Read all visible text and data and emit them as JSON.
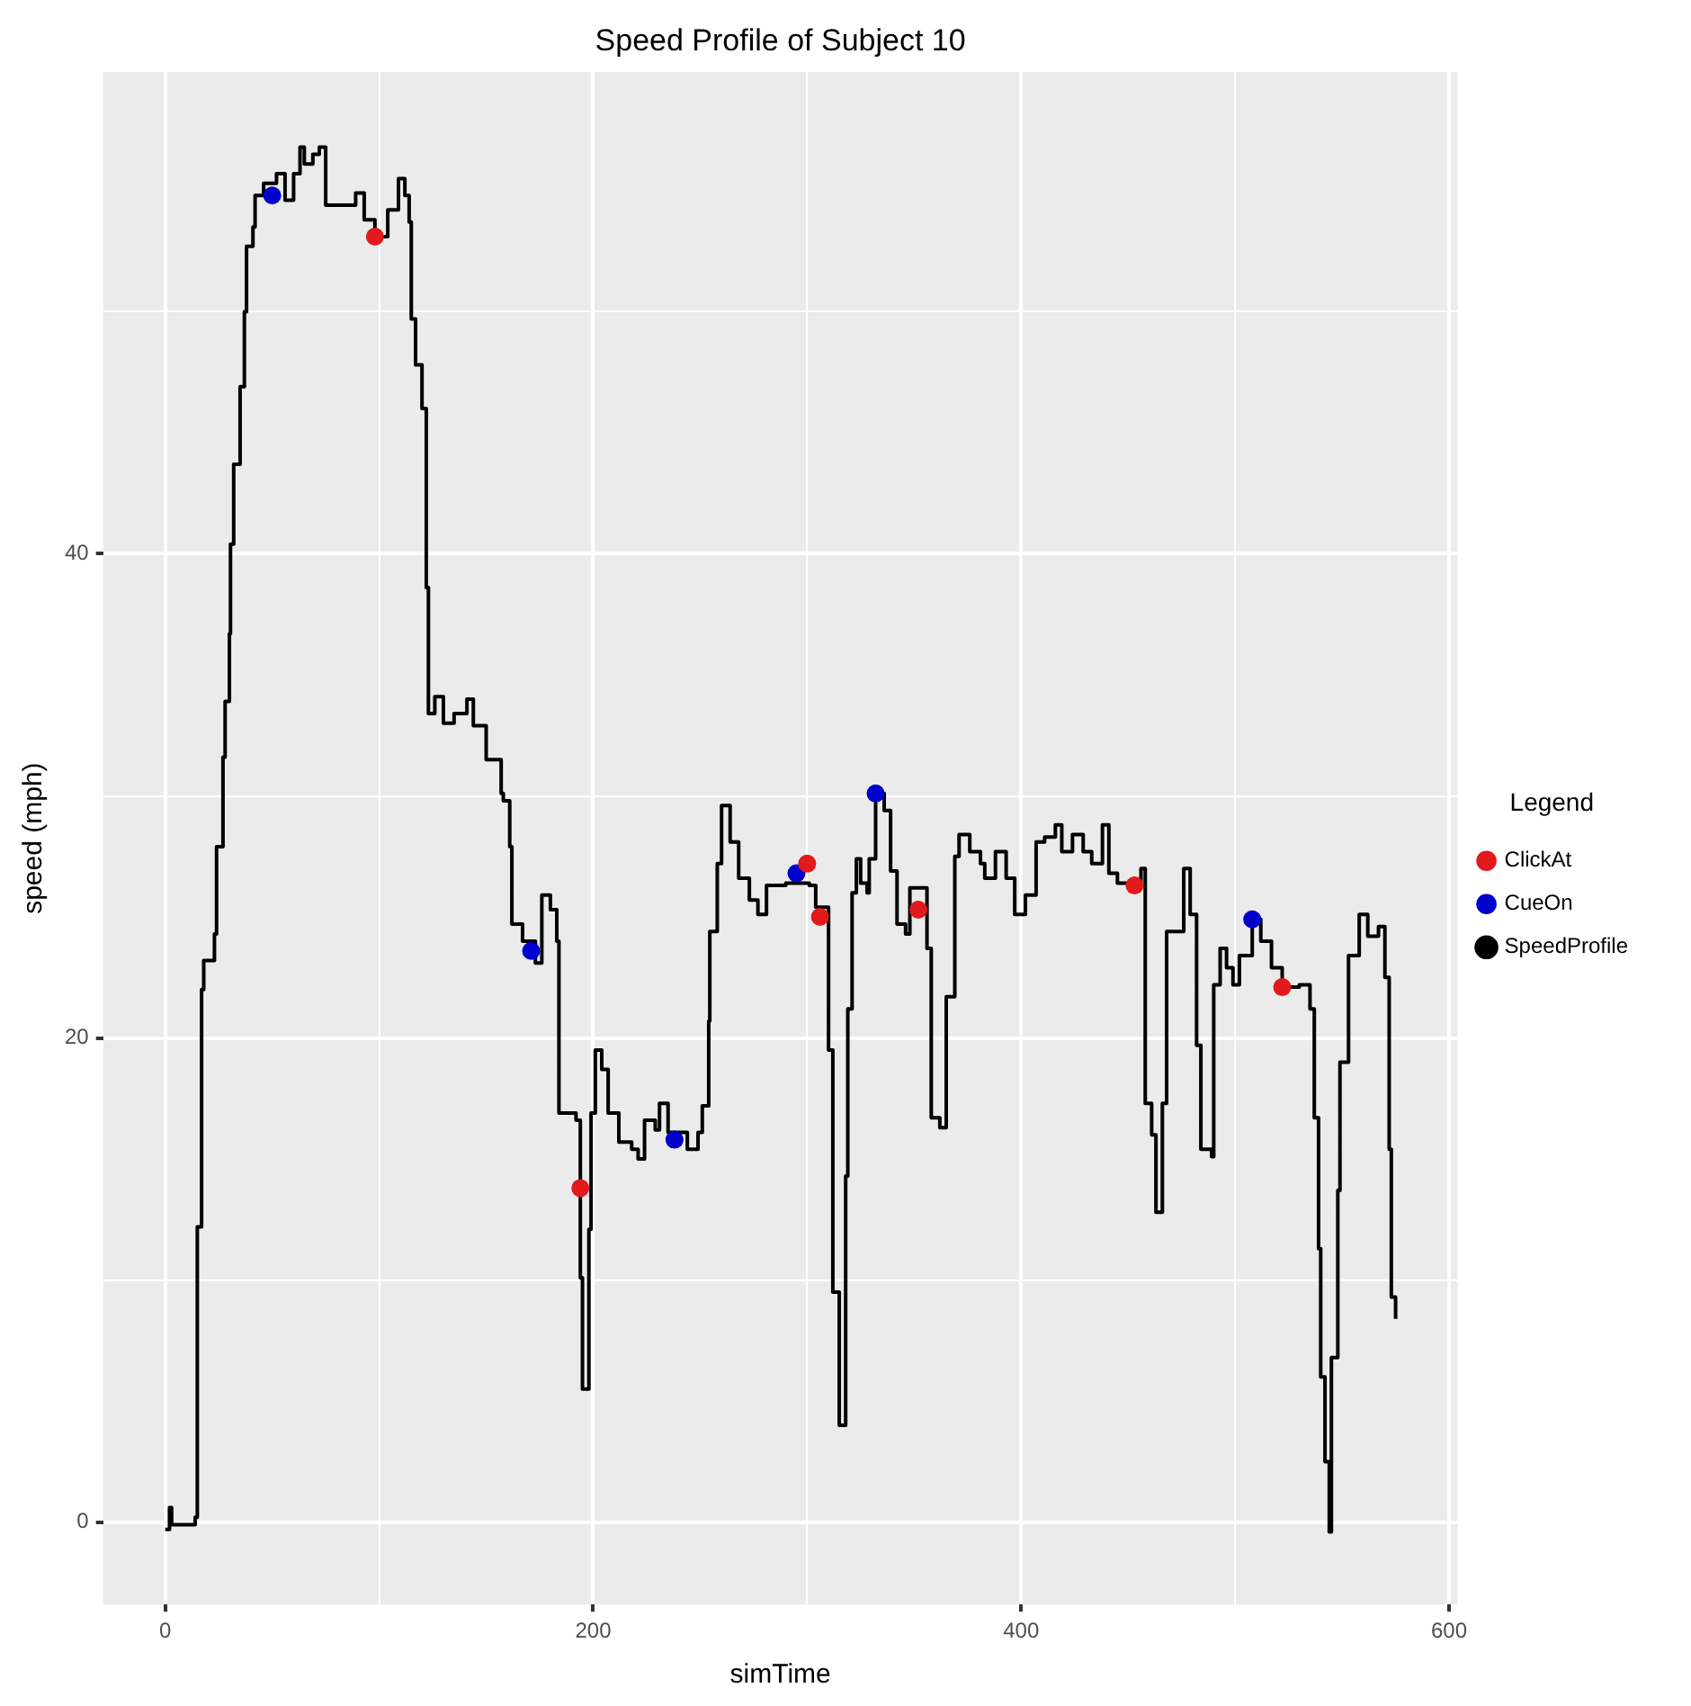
{
  "chart_data": {
    "type": "step",
    "title": "Speed Profile of Subject 10",
    "xlabel": "simTime",
    "ylabel": "speed (mph)",
    "legend_title": "Legend",
    "legend": "right",
    "grid": true,
    "xlim": [
      -29,
      604
    ],
    "xticks": [
      0,
      {
        "value": 100,
        "label": null
      },
      200,
      {
        "value": 300,
        "label": null
      },
      400,
      {
        "value": 500,
        "label": null
      },
      600
    ],
    "ylim": [
      -3.4,
      59.9
    ],
    "yticks": [
      0,
      {
        "value": 10,
        "label": null
      },
      20,
      {
        "value": 30,
        "label": null
      },
      40,
      {
        "value": 50,
        "label": null
      }
    ],
    "series": [
      {
        "name": "ClickAt",
        "type": "scatter",
        "marker": "circle",
        "color": "#e31a1c",
        "x": [
          98,
          194,
          300,
          306,
          352,
          453,
          522
        ],
        "values": [
          53.1,
          13.8,
          27.2,
          25.0,
          25.3,
          26.3,
          22.1
        ]
      },
      {
        "name": "CueOn",
        "type": "scatter",
        "marker": "circle",
        "color": "#0000cc",
        "x": [
          50,
          171,
          238,
          295,
          332,
          508
        ],
        "values": [
          54.8,
          23.6,
          15.8,
          26.8,
          30.1,
          24.9
        ]
      },
      {
        "name": "SpeedProfile",
        "type": "step",
        "color": "#000000",
        "x": [
          0,
          2,
          3,
          14,
          15,
          17,
          18,
          23,
          24,
          27,
          28,
          30,
          30.5,
          32,
          35,
          37,
          38,
          41,
          42,
          46,
          52,
          56,
          60,
          63,
          65,
          69,
          72,
          75,
          89,
          93,
          98,
          104,
          109,
          112,
          114,
          115,
          117,
          120,
          122,
          123,
          126,
          130,
          135,
          141,
          144,
          150,
          157,
          158,
          161,
          162,
          167,
          173,
          176,
          180,
          183,
          184,
          192,
          194,
          195,
          198,
          199,
          201,
          204,
          207,
          212,
          218,
          221,
          224,
          229,
          231,
          235,
          244,
          249,
          251,
          254,
          254.5,
          258,
          260,
          264,
          268,
          273,
          277,
          281,
          290,
          301,
          304,
          310,
          312,
          315,
          318,
          319,
          321,
          323,
          325,
          328,
          329,
          332,
          336,
          339,
          342,
          346,
          348,
          356,
          358,
          362,
          365,
          369,
          371,
          376,
          381,
          383,
          388,
          393,
          397,
          402,
          407,
          411,
          416,
          419,
          424,
          429,
          433,
          438,
          441,
          445,
          456,
          458,
          461,
          463,
          466,
          468,
          476,
          479,
          482,
          484,
          489,
          490,
          493,
          496,
          499,
          502,
          508,
          512,
          517,
          522,
          530,
          535,
          537,
          539,
          540,
          542,
          544,
          545,
          548,
          549,
          553,
          558,
          562,
          567,
          570,
          572,
          573,
          575
        ],
        "values": [
          -0.3,
          0.6,
          -0.1,
          0.2,
          12.2,
          22.0,
          23.2,
          24.3,
          27.9,
          31.6,
          33.9,
          36.7,
          40.4,
          43.7,
          46.9,
          50.0,
          52.7,
          53.5,
          54.8,
          55.3,
          55.7,
          54.6,
          55.7,
          56.8,
          56.1,
          56.5,
          56.8,
          54.4,
          54.9,
          53.8,
          53.1,
          54.2,
          55.5,
          54.8,
          53.7,
          49.7,
          47.8,
          46.0,
          38.6,
          33.4,
          34.1,
          33.0,
          33.4,
          34.0,
          32.9,
          31.5,
          30.1,
          29.8,
          27.9,
          24.7,
          24.0,
          23.1,
          25.9,
          25.3,
          24.0,
          16.9,
          16.6,
          10.1,
          5.5,
          12.1,
          16.9,
          19.5,
          18.7,
          16.9,
          15.7,
          15.4,
          15.0,
          16.6,
          16.2,
          17.3,
          16.1,
          15.4,
          16.1,
          17.2,
          20.7,
          24.4,
          27.2,
          29.6,
          28.1,
          26.6,
          25.7,
          25.1,
          26.3,
          26.4,
          26.3,
          25.4,
          19.5,
          9.5,
          4.0,
          14.3,
          21.2,
          26.0,
          27.4,
          26.4,
          26.0,
          27.4,
          30.1,
          29.4,
          26.9,
          24.7,
          24.3,
          26.2,
          23.7,
          16.7,
          16.3,
          21.7,
          27.5,
          28.4,
          27.7,
          27.2,
          26.6,
          27.7,
          26.6,
          25.1,
          25.9,
          28.1,
          28.3,
          28.8,
          27.7,
          28.4,
          27.7,
          27.2,
          28.8,
          26.8,
          26.4,
          27.0,
          17.3,
          16.0,
          12.8,
          17.3,
          24.4,
          27.0,
          25.1,
          19.7,
          15.4,
          15.1,
          22.2,
          23.7,
          22.9,
          22.2,
          23.4,
          24.9,
          24.0,
          22.9,
          22.1,
          22.2,
          21.2,
          16.7,
          11.3,
          6.0,
          2.5,
          -0.4,
          6.8,
          13.7,
          19.0,
          23.4,
          25.1,
          24.2,
          24.6,
          22.5,
          15.4,
          9.3,
          8.4
        ]
      }
    ]
  }
}
